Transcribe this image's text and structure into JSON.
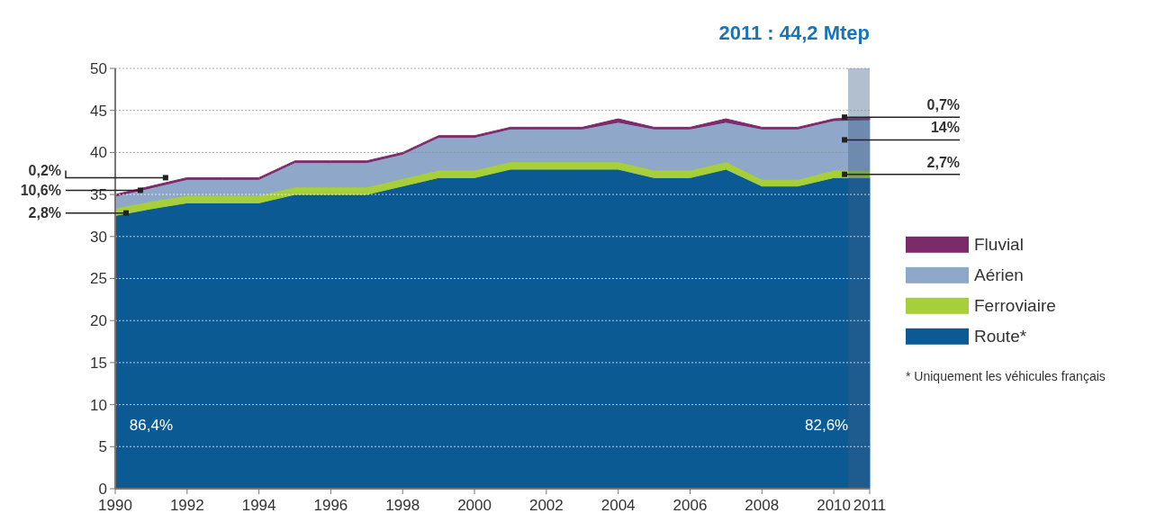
{
  "chart_data": {
    "type": "area",
    "stacked": true,
    "title": "2011 : 44,2 Mtep",
    "x": [
      1990,
      1991,
      1992,
      1993,
      1994,
      1995,
      1996,
      1997,
      1998,
      1999,
      2000,
      2001,
      2002,
      2003,
      2004,
      2005,
      2006,
      2007,
      2008,
      2009,
      2010,
      2011
    ],
    "series": [
      {
        "name": "Route*",
        "color": "#0b5a94",
        "values": [
          32.5,
          33.3,
          34,
          34,
          34,
          35,
          35,
          35,
          36,
          37,
          37,
          38,
          38,
          38,
          38,
          37,
          37,
          38,
          36,
          36,
          37,
          37
        ]
      },
      {
        "name": "Ferroviaire",
        "color": "#a6cf3a",
        "values": [
          0.9,
          0.9,
          0.9,
          0.9,
          0.9,
          0.9,
          0.9,
          0.9,
          0.9,
          0.9,
          0.9,
          0.9,
          0.9,
          0.9,
          0.9,
          0.9,
          0.9,
          0.9,
          0.8,
          0.8,
          0.9,
          0.9
        ]
      },
      {
        "name": "Aérien",
        "color": "#8fa7c8",
        "values": [
          1.4,
          1.6,
          1.9,
          1.9,
          1.9,
          2.9,
          2.9,
          2.9,
          2.9,
          3.9,
          3.9,
          3.9,
          3.9,
          3.9,
          4.7,
          4.9,
          4.9,
          4.7,
          6,
          6,
          5.9,
          6
        ]
      },
      {
        "name": "Fluvial",
        "color": "#7d2a6b",
        "values": [
          0.2,
          0.2,
          0.2,
          0.2,
          0.2,
          0.2,
          0.2,
          0.2,
          0.2,
          0.2,
          0.2,
          0.2,
          0.2,
          0.2,
          0.4,
          0.2,
          0.2,
          0.4,
          0.2,
          0.2,
          0.2,
          0.3
        ]
      }
    ],
    "xlim": [
      1990,
      2011
    ],
    "xticks": [
      1990,
      1992,
      1994,
      1996,
      1998,
      2000,
      2002,
      2004,
      2006,
      2008,
      2010,
      2011
    ],
    "ylim": [
      0,
      50
    ],
    "yticks": [
      0,
      5,
      10,
      15,
      20,
      25,
      30,
      35,
      40,
      45,
      50
    ],
    "grid": "y",
    "legend": "right",
    "bands": [
      {
        "axis": "x",
        "from": 2010.4,
        "to": 2011,
        "color": "#3d5f86"
      }
    ],
    "annotations": [
      {
        "text": "0,2%",
        "x": 1991.4,
        "y": 37
      },
      {
        "text": "10,6%",
        "x": 1990.7,
        "y": 35.5
      },
      {
        "text": "2,8%",
        "x": 1990.3,
        "y": 32.8
      },
      "86,4%",
      {
        "text": "0,7%",
        "x": 2010.3,
        "y": 44.2
      },
      {
        "text": "14%",
        "x": 2010.3,
        "y": 41.5
      },
      {
        "text": "2,7%",
        "x": 2010.3,
        "y": 37.4
      },
      "82,6%",
      "* Uniquement les véhicules français"
    ]
  }
}
